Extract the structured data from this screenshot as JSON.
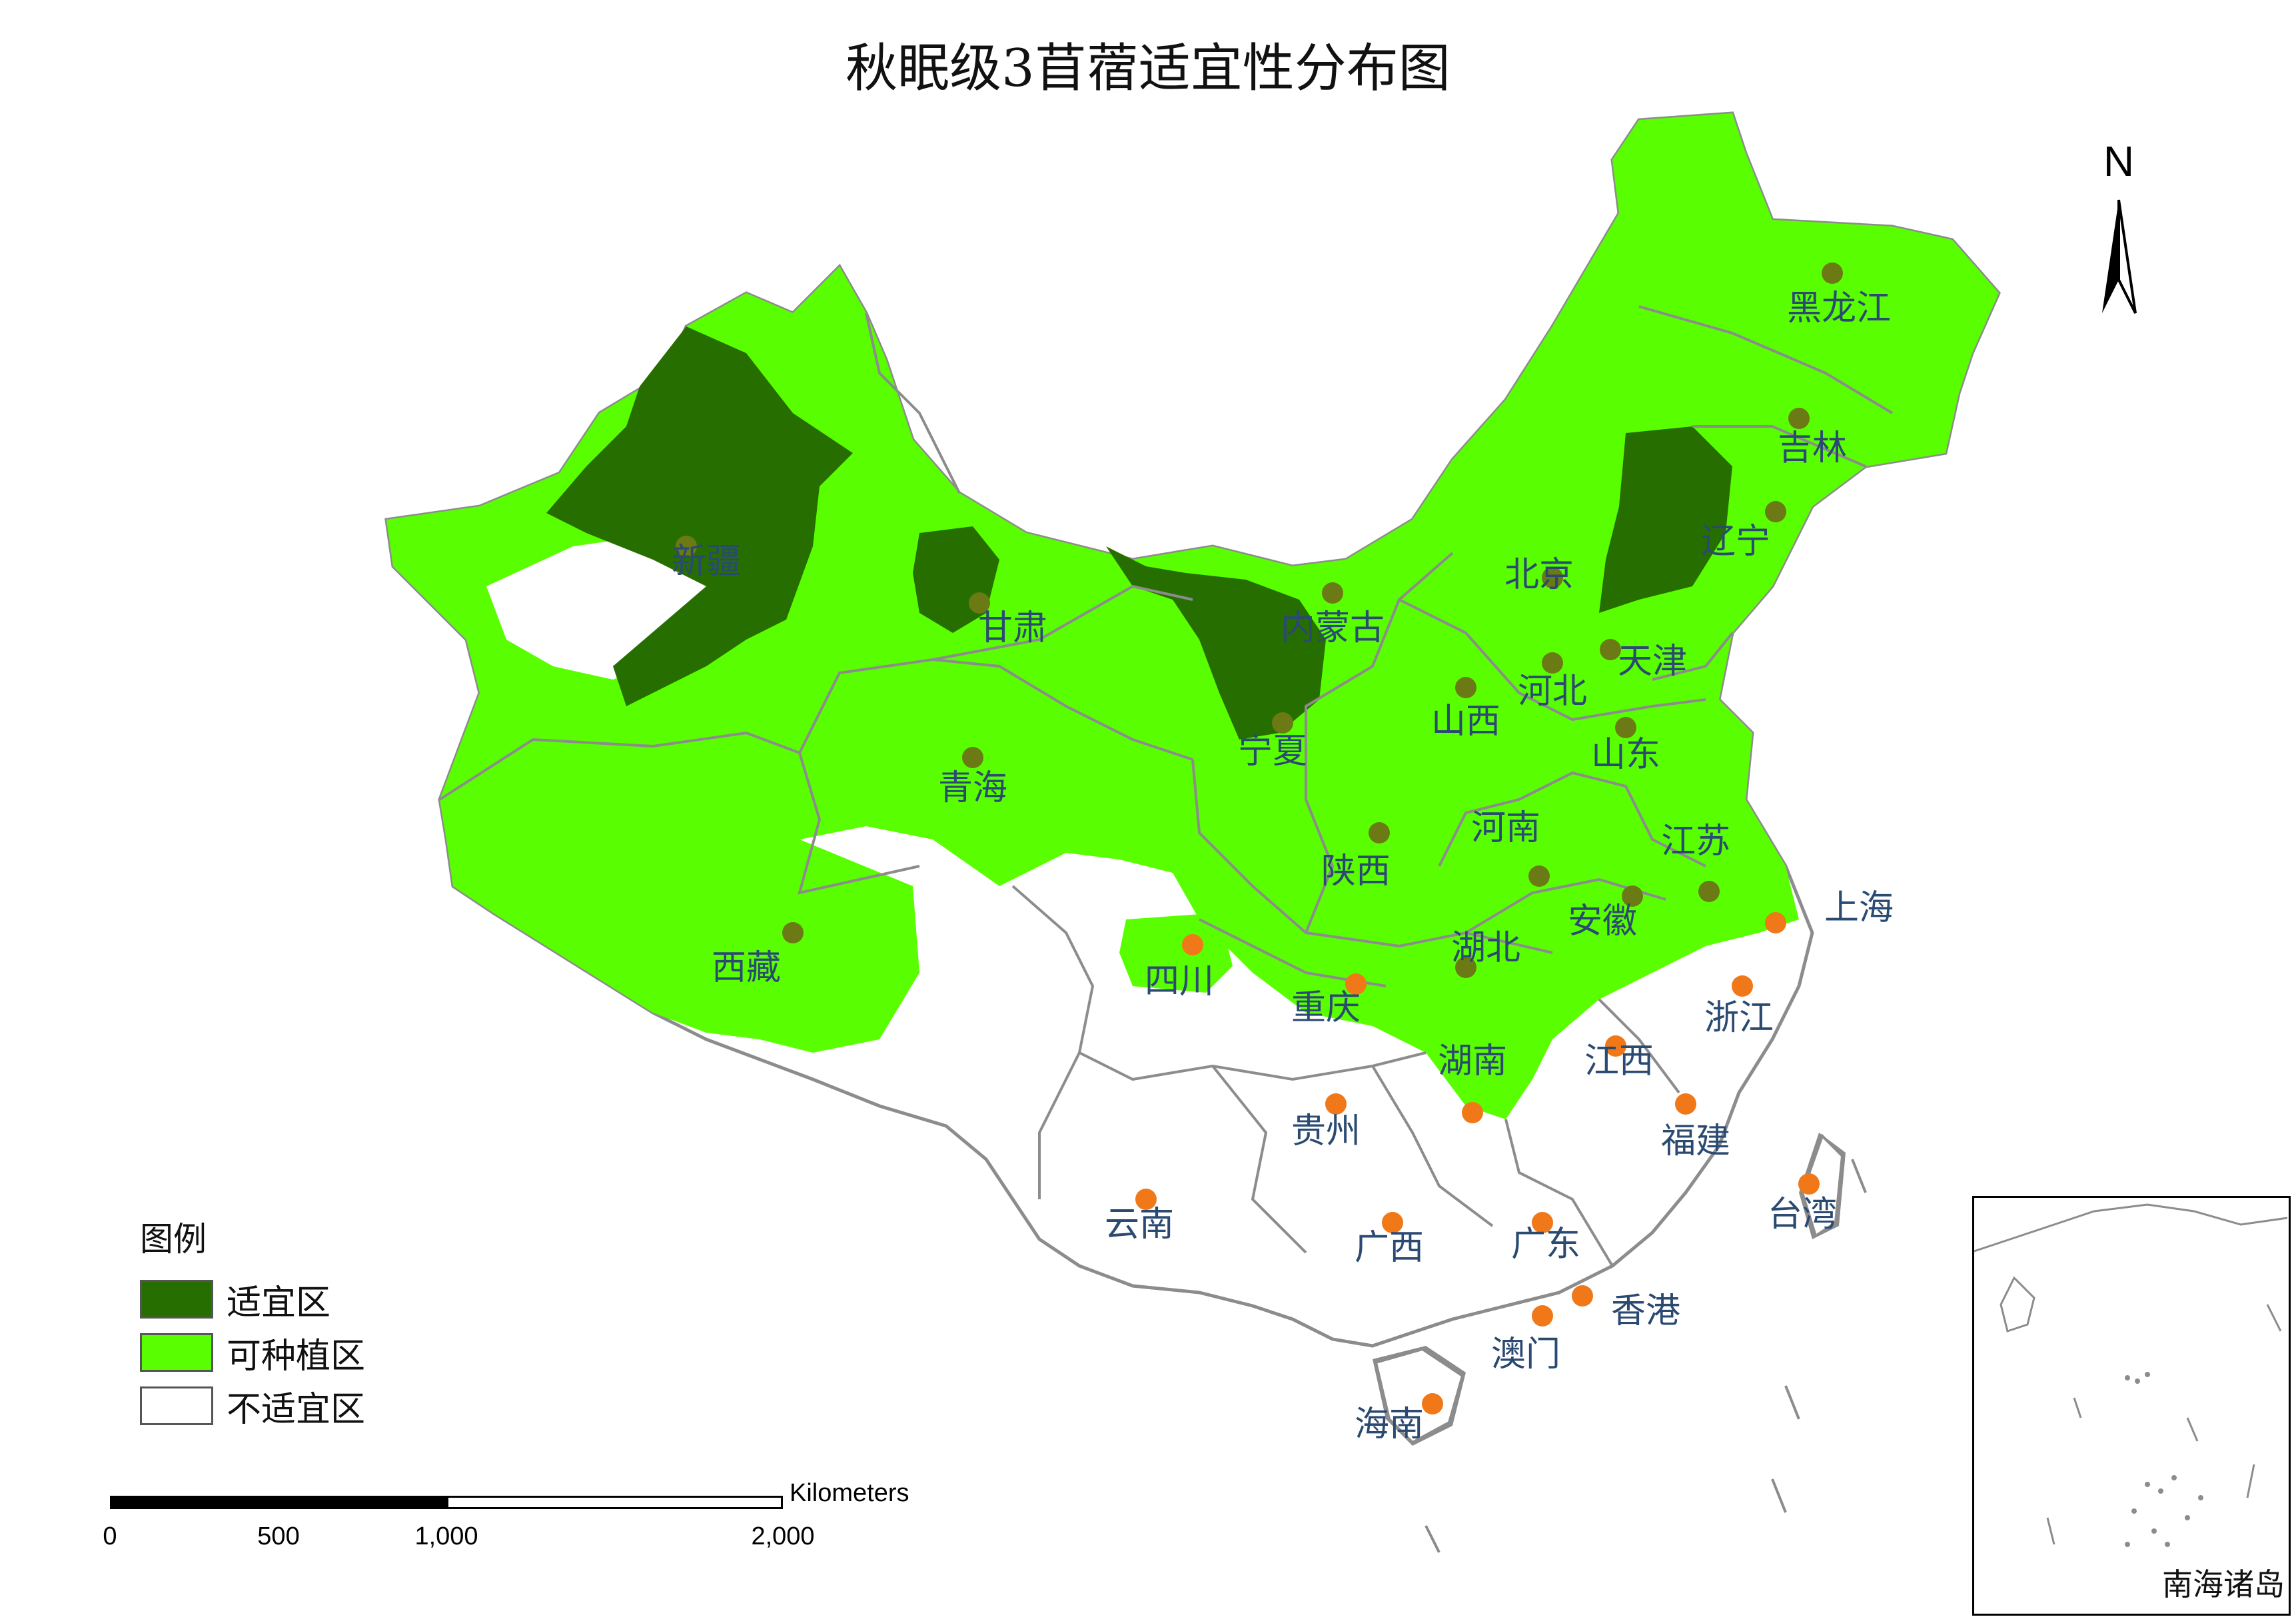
{
  "title": "秋眠级3苜蓿适宜性分布图",
  "north_arrow": {
    "label": "N"
  },
  "colors": {
    "suitable": "#276e00",
    "plantable": "#59ff00",
    "unsuitable": "#ffffff",
    "boundary": "#8c8c8c",
    "label": "#2a4a72",
    "marker_green": "#6b7a14",
    "marker_orange": "#f07818"
  },
  "legend": {
    "title": "图例",
    "items": [
      {
        "label": "适宜区",
        "color": "#276e00"
      },
      {
        "label": "可种植区",
        "color": "#59ff00"
      },
      {
        "label": "不适宜区",
        "color": "#ffffff"
      }
    ]
  },
  "scale_bar": {
    "unit": "Kilometers",
    "ticks": [
      "0",
      "500",
      "1,000",
      "2,000"
    ]
  },
  "inset": {
    "label": "南海诸岛"
  },
  "provinces": [
    {
      "name": "新疆",
      "category": "suitable"
    },
    {
      "name": "甘肃",
      "category": "plantable"
    },
    {
      "name": "内蒙古",
      "category": "plantable"
    },
    {
      "name": "黑龙江",
      "category": "plantable"
    },
    {
      "name": "吉林",
      "category": "plantable"
    },
    {
      "name": "辽宁",
      "category": "suitable"
    },
    {
      "name": "北京",
      "category": "plantable"
    },
    {
      "name": "天津",
      "category": "plantable"
    },
    {
      "name": "河北",
      "category": "plantable"
    },
    {
      "name": "山西",
      "category": "plantable"
    },
    {
      "name": "宁夏",
      "category": "suitable"
    },
    {
      "name": "山东",
      "category": "plantable"
    },
    {
      "name": "青海",
      "category": "plantable"
    },
    {
      "name": "陕西",
      "category": "plantable"
    },
    {
      "name": "河南",
      "category": "plantable"
    },
    {
      "name": "江苏",
      "category": "plantable"
    },
    {
      "name": "安徽",
      "category": "plantable"
    },
    {
      "name": "上海",
      "category": "unsuitable"
    },
    {
      "name": "西藏",
      "category": "plantable"
    },
    {
      "name": "四川",
      "category": "unsuitable"
    },
    {
      "name": "湖北",
      "category": "plantable"
    },
    {
      "name": "重庆",
      "category": "unsuitable"
    },
    {
      "name": "浙江",
      "category": "unsuitable"
    },
    {
      "name": "湖南",
      "category": "unsuitable"
    },
    {
      "name": "江西",
      "category": "unsuitable"
    },
    {
      "name": "贵州",
      "category": "unsuitable"
    },
    {
      "name": "福建",
      "category": "unsuitable"
    },
    {
      "name": "云南",
      "category": "unsuitable"
    },
    {
      "name": "台湾",
      "category": "unsuitable"
    },
    {
      "name": "广西",
      "category": "unsuitable"
    },
    {
      "name": "广东",
      "category": "unsuitable"
    },
    {
      "name": "香港",
      "category": "unsuitable"
    },
    {
      "name": "澳门",
      "category": "unsuitable"
    },
    {
      "name": "海南",
      "category": "unsuitable"
    }
  ]
}
